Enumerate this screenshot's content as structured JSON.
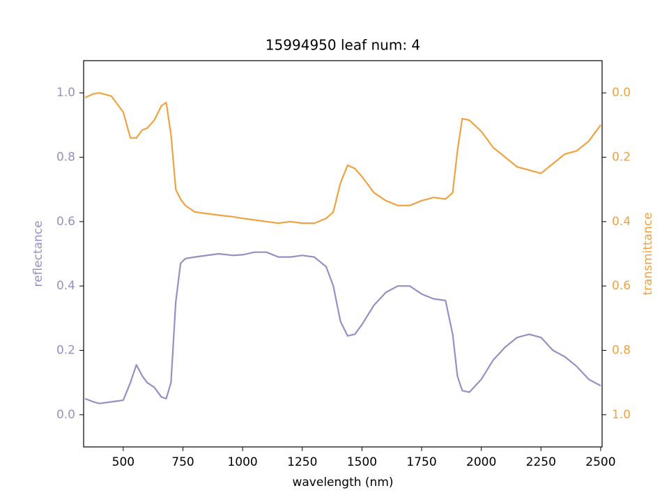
{
  "chart_data": {
    "type": "line",
    "title": "15994950 leaf num: 4",
    "xlabel": "wavelength (nm)",
    "ylabel": "reflectance",
    "y2label": "transmittance",
    "x": [
      340,
      375,
      400,
      450,
      500,
      530,
      555,
      580,
      600,
      630,
      660,
      680,
      700,
      720,
      740,
      760,
      800,
      900,
      960,
      1000,
      1050,
      1100,
      1150,
      1200,
      1250,
      1300,
      1350,
      1380,
      1410,
      1440,
      1470,
      1500,
      1550,
      1600,
      1650,
      1700,
      1750,
      1800,
      1850,
      1880,
      1900,
      1920,
      1950,
      2000,
      2050,
      2100,
      2150,
      2200,
      2250,
      2300,
      2350,
      2400,
      2450,
      2500
    ],
    "series": [
      {
        "name": "reflectance",
        "color": "#9590c4",
        "axis": "y",
        "values": [
          0.05,
          0.04,
          0.035,
          0.04,
          0.045,
          0.1,
          0.155,
          0.12,
          0.1,
          0.085,
          0.055,
          0.05,
          0.1,
          0.35,
          0.47,
          0.485,
          0.49,
          0.5,
          0.495,
          0.497,
          0.505,
          0.505,
          0.49,
          0.49,
          0.495,
          0.49,
          0.46,
          0.4,
          0.29,
          0.245,
          0.25,
          0.28,
          0.34,
          0.38,
          0.4,
          0.4,
          0.375,
          0.36,
          0.355,
          0.25,
          0.12,
          0.075,
          0.07,
          0.11,
          0.17,
          0.21,
          0.24,
          0.25,
          0.24,
          0.2,
          0.18,
          0.15,
          0.11,
          0.09
        ]
      },
      {
        "name": "transmittance",
        "color": "#f0a241",
        "axis": "y2",
        "values": [
          0.015,
          0.003,
          0.0,
          0.01,
          0.06,
          0.14,
          0.14,
          0.115,
          0.11,
          0.085,
          0.04,
          0.03,
          0.13,
          0.3,
          0.33,
          0.35,
          0.37,
          0.38,
          0.385,
          0.39,
          0.395,
          0.4,
          0.405,
          0.4,
          0.405,
          0.405,
          0.39,
          0.37,
          0.28,
          0.225,
          0.235,
          0.26,
          0.31,
          0.335,
          0.35,
          0.35,
          0.335,
          0.325,
          0.33,
          0.31,
          0.18,
          0.08,
          0.085,
          0.12,
          0.17,
          0.2,
          0.23,
          0.24,
          0.25,
          0.22,
          0.19,
          0.18,
          0.15,
          0.1
        ]
      }
    ],
    "xlim": [
      334,
      2506
    ],
    "xticks": [
      500,
      750,
      1000,
      1250,
      1500,
      1750,
      2000,
      2250,
      2500
    ],
    "ylim": [
      -0.1,
      1.1
    ],
    "yticks": [
      {
        "value": 0,
        "label": "0.0"
      },
      0.2,
      0.4,
      0.6,
      0.8,
      {
        "value": 1,
        "label": "1.0"
      }
    ],
    "y2lim": [
      1.1,
      -0.1
    ],
    "y2ticks": [
      {
        "value": 0,
        "label": "0.0"
      },
      0.2,
      0.4,
      0.6,
      0.8,
      {
        "value": 1,
        "label": "1.0"
      }
    ],
    "grid": false
  }
}
